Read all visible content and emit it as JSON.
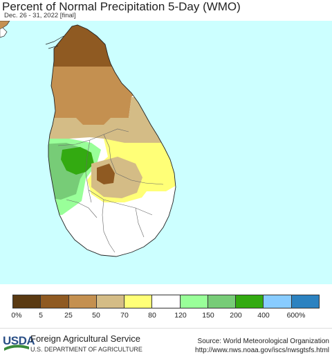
{
  "header": {
    "title": "Percent of Normal Precipitation 5-Day (WMO)",
    "subtitle": "Dec. 26 - 31, 2022 [final]"
  },
  "map": {
    "region": "Sri Lanka",
    "ocean_color": "#ccffff",
    "land_background_color": "#ffffff"
  },
  "legend": {
    "colors": [
      "#5a3a12",
      "#8f5a22",
      "#c49050",
      "#d4bc86",
      "#ffff77",
      "#ffffff",
      "#99ff99",
      "#77cc77",
      "#33aa11",
      "#88ccff",
      "#2c82c0"
    ],
    "labels": [
      "0%",
      "5",
      "25",
      "50",
      "70",
      "80",
      "120",
      "150",
      "200",
      "400",
      "600%"
    ]
  },
  "footer": {
    "agency": "Foreign Agricultural Service",
    "department": "U.S. DEPARTMENT OF AGRICULTURE",
    "logo_text": "USDA",
    "source": "Source: World Meteorological Organization",
    "url": "http://www.nws.noaa.gov/iscs/nwsgtsfs.html"
  }
}
